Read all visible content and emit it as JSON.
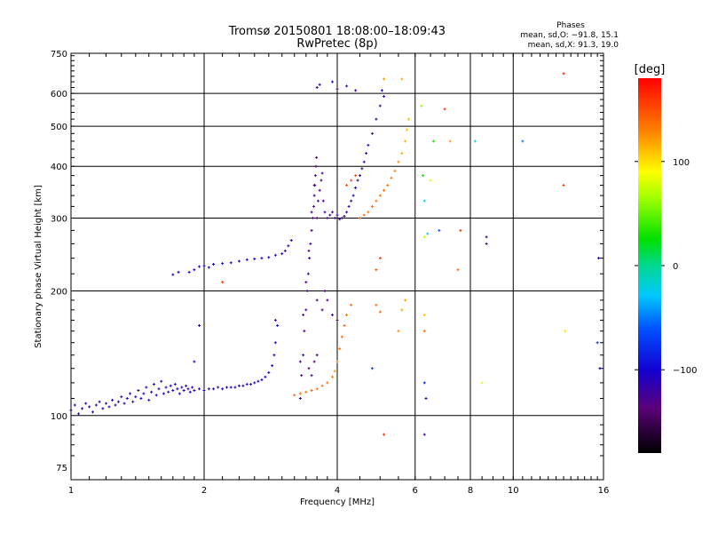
{
  "chart_data": {
    "type": "scatter",
    "title": "Tromsø 20150801 18:08:00–18:09:43",
    "subtitle": "RwPretec (8p)",
    "legend": {
      "heading": "Phases",
      "line_o": "mean, sd,O: −91.8, 15.1",
      "line_x": "mean, sd,X:  91.3, 19.0"
    },
    "xlabel": "Frequency [MHz]",
    "ylabel": "Stationary phase Virtual Height [km]",
    "xscale": "log",
    "yscale": "log",
    "xlim": [
      1,
      16
    ],
    "ylim": [
      70,
      750
    ],
    "grid": true,
    "xticks": [
      {
        "value": 1,
        "label": "1"
      },
      {
        "value": 2,
        "label": "2"
      },
      {
        "value": 4,
        "label": "4"
      },
      {
        "value": 6,
        "label": "6"
      },
      {
        "value": 8,
        "label": "8"
      },
      {
        "value": 10,
        "label": "10"
      },
      {
        "value": 16,
        "label": "16"
      }
    ],
    "yticks": [
      {
        "value": 75,
        "label": "75"
      },
      {
        "value": 100,
        "label": "100"
      },
      {
        "value": 200,
        "label": "200"
      },
      {
        "value": 300,
        "label": "300"
      },
      {
        "value": 400,
        "label": "400"
      },
      {
        "value": 500,
        "label": "500"
      },
      {
        "value": 600,
        "label": "600"
      },
      {
        "value": 750,
        "label": "750"
      }
    ],
    "colorbar": {
      "title": "[deg]",
      "range": [
        -180,
        180
      ],
      "ticks": [
        {
          "value": 100,
          "label": "100"
        },
        {
          "value": 0,
          "label": "0"
        },
        {
          "value": -100,
          "label": "−100"
        }
      ]
    },
    "series": [
      {
        "points": [
          [
            1.0,
            103,
            -110
          ],
          [
            1.02,
            106,
            -112
          ],
          [
            1.04,
            101,
            -108
          ],
          [
            1.06,
            104,
            -115
          ],
          [
            1.08,
            107,
            -110
          ],
          [
            1.1,
            105,
            -112
          ],
          [
            1.12,
            102,
            -108
          ],
          [
            1.14,
            106,
            -110
          ],
          [
            1.16,
            108,
            -114
          ],
          [
            1.18,
            104,
            -110
          ],
          [
            1.2,
            107,
            -112
          ],
          [
            1.22,
            105,
            -108
          ],
          [
            1.24,
            109,
            -110
          ],
          [
            1.26,
            106,
            -113
          ],
          [
            1.28,
            108,
            -110
          ],
          [
            1.3,
            111,
            -112
          ],
          [
            1.32,
            107,
            -110
          ],
          [
            1.34,
            110,
            -109
          ],
          [
            1.36,
            113,
            -112
          ],
          [
            1.38,
            108,
            -110
          ],
          [
            1.4,
            111,
            -112
          ],
          [
            1.42,
            115,
            -110
          ],
          [
            1.44,
            110,
            -108
          ],
          [
            1.46,
            113,
            -111
          ],
          [
            1.48,
            117,
            -110
          ],
          [
            1.5,
            109,
            -112
          ],
          [
            1.52,
            114,
            -110
          ],
          [
            1.54,
            119,
            -108
          ],
          [
            1.56,
            112,
            -110
          ],
          [
            1.58,
            116,
            -112
          ],
          [
            1.6,
            121,
            -110
          ],
          [
            1.62,
            113,
            -111
          ],
          [
            1.64,
            117,
            -110
          ],
          [
            1.66,
            114,
            -112
          ],
          [
            1.68,
            118,
            -109
          ],
          [
            1.7,
            115,
            -110
          ],
          [
            1.72,
            119,
            -112
          ],
          [
            1.74,
            116,
            -110
          ],
          [
            1.76,
            113,
            -108
          ],
          [
            1.78,
            117,
            -111
          ],
          [
            1.8,
            115,
            -110
          ],
          [
            1.82,
            118,
            -112
          ],
          [
            1.84,
            116,
            -110
          ],
          [
            1.86,
            114,
            -109
          ],
          [
            1.88,
            117,
            -111
          ],
          [
            1.9,
            115,
            -110
          ],
          [
            1.95,
            116,
            -112
          ],
          [
            2.0,
            115,
            -110
          ],
          [
            2.05,
            116,
            -111
          ],
          [
            2.1,
            116,
            -110
          ],
          [
            2.15,
            117,
            -112
          ],
          [
            2.2,
            116,
            -110
          ],
          [
            2.25,
            117,
            -111
          ],
          [
            2.3,
            117,
            -110
          ],
          [
            2.35,
            117,
            -112
          ],
          [
            2.4,
            118,
            -110
          ],
          [
            2.45,
            118,
            -111
          ],
          [
            2.5,
            119,
            -110
          ],
          [
            2.55,
            119,
            -112
          ],
          [
            2.6,
            120,
            -110
          ],
          [
            2.65,
            121,
            -108
          ],
          [
            2.7,
            122,
            -105
          ],
          [
            2.75,
            124,
            -102
          ],
          [
            2.8,
            127,
            -100
          ],
          [
            2.85,
            132,
            -98
          ],
          [
            2.88,
            140,
            -97
          ],
          [
            2.9,
            150,
            -96
          ],
          [
            2.93,
            165,
            -95
          ],
          [
            1.85,
            222,
            -100
          ],
          [
            1.9,
            225,
            -101
          ],
          [
            1.95,
            229,
            -100
          ],
          [
            2.0,
            230,
            -102
          ],
          [
            2.05,
            228,
            -100
          ],
          [
            2.1,
            232,
            -101
          ],
          [
            2.2,
            233,
            -100
          ],
          [
            2.3,
            234,
            -102
          ],
          [
            2.4,
            236,
            -100
          ],
          [
            2.5,
            238,
            -101
          ],
          [
            2.6,
            239,
            -100
          ],
          [
            2.7,
            240,
            -102
          ],
          [
            2.8,
            241,
            -100
          ],
          [
            2.9,
            244,
            -101
          ],
          [
            3.0,
            246,
            -103
          ],
          [
            3.05,
            250,
            -105
          ],
          [
            3.1,
            257,
            -108
          ],
          [
            3.15,
            265,
            -112
          ],
          [
            1.7,
            219,
            -100
          ],
          [
            1.75,
            222,
            -101
          ]
        ]
      },
      {
        "points": [
          [
            3.3,
            110,
            -120
          ],
          [
            3.32,
            125,
            -130
          ],
          [
            3.35,
            140,
            -118
          ],
          [
            3.37,
            160,
            -122
          ],
          [
            3.4,
            180,
            -125
          ],
          [
            3.42,
            200,
            -130
          ],
          [
            3.44,
            220,
            -124
          ],
          [
            3.46,
            240,
            -118
          ],
          [
            3.48,
            260,
            -125
          ],
          [
            3.5,
            280,
            -130
          ],
          [
            3.52,
            300,
            -135
          ],
          [
            3.54,
            320,
            -128
          ],
          [
            3.55,
            340,
            -120
          ],
          [
            3.56,
            360,
            -125
          ],
          [
            3.57,
            380,
            -130
          ],
          [
            3.58,
            400,
            -135
          ],
          [
            3.59,
            420,
            -128
          ],
          [
            3.3,
            135,
            -130
          ],
          [
            3.35,
            175,
            -135
          ],
          [
            3.4,
            210,
            -130
          ],
          [
            3.45,
            250,
            -128
          ],
          [
            3.5,
            310,
            -124
          ],
          [
            3.55,
            360,
            -130
          ],
          [
            3.6,
            300,
            -128
          ],
          [
            3.62,
            330,
            -125
          ],
          [
            3.65,
            350,
            -130
          ],
          [
            3.68,
            370,
            -128
          ],
          [
            3.7,
            385,
            -124
          ],
          [
            3.72,
            330,
            -126
          ],
          [
            3.75,
            310,
            -122
          ],
          [
            3.8,
            300,
            -125
          ],
          [
            3.85,
            305,
            -120
          ],
          [
            3.9,
            310,
            -122
          ],
          [
            3.95,
            300,
            -124
          ],
          [
            4.0,
            305,
            -120
          ],
          [
            4.05,
            298,
            -122
          ],
          [
            4.1,
            300,
            -121
          ],
          [
            4.15,
            303,
            -123
          ],
          [
            4.2,
            310,
            -120
          ],
          [
            4.25,
            320,
            -118
          ],
          [
            4.3,
            330,
            -119
          ],
          [
            4.35,
            340,
            -117
          ],
          [
            4.4,
            355,
            -115
          ],
          [
            4.45,
            370,
            -115
          ],
          [
            4.5,
            380,
            -116
          ],
          [
            4.55,
            395,
            -115
          ],
          [
            4.6,
            410,
            -114
          ],
          [
            4.65,
            430,
            -115
          ],
          [
            4.7,
            450,
            -112
          ],
          [
            4.8,
            480,
            -113
          ],
          [
            4.9,
            520,
            -112
          ],
          [
            5.0,
            560,
            -111
          ],
          [
            3.6,
            620,
            -120
          ],
          [
            3.65,
            630,
            -122
          ],
          [
            3.9,
            640,
            -118
          ],
          [
            4.0,
            615,
            -121
          ],
          [
            4.2,
            625,
            -119
          ],
          [
            4.4,
            610,
            -120
          ],
          [
            5.05,
            610,
            -110
          ],
          [
            5.1,
            590,
            -112
          ],
          [
            3.7,
            180,
            -130
          ],
          [
            3.75,
            200,
            -128
          ],
          [
            3.8,
            190,
            -125
          ],
          [
            3.9,
            175,
            -122
          ],
          [
            4.0,
            170,
            -125
          ],
          [
            3.6,
            190,
            -130
          ],
          [
            3.45,
            130,
            -135
          ],
          [
            3.5,
            125,
            -132
          ],
          [
            3.55,
            135,
            -130
          ],
          [
            3.6,
            140,
            -128
          ]
        ]
      },
      {
        "points": [
          [
            3.2,
            112,
            140
          ],
          [
            3.3,
            113,
            138
          ],
          [
            3.4,
            114,
            135
          ],
          [
            3.5,
            115,
            140
          ],
          [
            3.6,
            116,
            138
          ],
          [
            3.7,
            118,
            135
          ],
          [
            3.8,
            120,
            140
          ],
          [
            3.9,
            124,
            132
          ],
          [
            3.95,
            128,
            125
          ],
          [
            4.0,
            135,
            130
          ],
          [
            4.05,
            145,
            138
          ],
          [
            4.1,
            155,
            140
          ],
          [
            4.15,
            165,
            142
          ],
          [
            4.2,
            175,
            136
          ],
          [
            4.3,
            185,
            140
          ],
          [
            4.5,
            300,
            140
          ],
          [
            4.6,
            305,
            138
          ],
          [
            4.7,
            310,
            135
          ],
          [
            4.8,
            320,
            140
          ],
          [
            4.9,
            330,
            138
          ],
          [
            5.0,
            340,
            135
          ],
          [
            5.1,
            350,
            140
          ],
          [
            5.2,
            360,
            138
          ],
          [
            5.3,
            375,
            135
          ],
          [
            5.4,
            390,
            130
          ],
          [
            5.5,
            410,
            125
          ],
          [
            5.6,
            430,
            120
          ],
          [
            5.7,
            460,
            115
          ],
          [
            5.75,
            490,
            110
          ],
          [
            5.8,
            520,
            112
          ],
          [
            5.6,
            650,
            118
          ],
          [
            5.1,
            650,
            122
          ],
          [
            4.2,
            360,
            150
          ],
          [
            4.3,
            370,
            152
          ],
          [
            4.4,
            380,
            150
          ],
          [
            5.5,
            160,
            125
          ],
          [
            5.6,
            180,
            120
          ],
          [
            5.7,
            190,
            118
          ],
          [
            4.9,
            185,
            140
          ],
          [
            5.0,
            178,
            142
          ]
        ]
      },
      {
        "points": [
          [
            6.2,
            560,
            60
          ],
          [
            6.25,
            380,
            30
          ],
          [
            6.3,
            330,
            -20
          ],
          [
            6.3,
            270,
            70
          ],
          [
            6.3,
            175,
            110
          ],
          [
            6.3,
            160,
            140
          ],
          [
            6.3,
            120,
            -90
          ],
          [
            6.35,
            110,
            -110
          ],
          [
            6.4,
            275,
            -30
          ],
          [
            6.5,
            370,
            80
          ],
          [
            6.6,
            460,
            30
          ],
          [
            6.8,
            280,
            -60
          ],
          [
            7.0,
            550,
            160
          ],
          [
            7.2,
            460,
            120
          ],
          [
            7.5,
            225,
            140
          ],
          [
            7.6,
            280,
            160
          ],
          [
            8.2,
            460,
            -20
          ],
          [
            8.5,
            120,
            80
          ],
          [
            8.7,
            270,
            -120
          ],
          [
            8.7,
            260,
            -140
          ],
          [
            10.5,
            460,
            -50
          ],
          [
            13.0,
            670,
            170
          ],
          [
            13.0,
            360,
            160
          ],
          [
            13.1,
            160,
            100
          ],
          [
            15.5,
            150,
            -80
          ],
          [
            15.7,
            130,
            -100
          ],
          [
            15.6,
            240,
            -110
          ],
          [
            5.1,
            90,
            160
          ],
          [
            6.3,
            90,
            -120
          ],
          [
            4.8,
            130,
            -70
          ],
          [
            4.9,
            225,
            150
          ],
          [
            5.0,
            240,
            160
          ],
          [
            2.2,
            210,
            160
          ],
          [
            1.95,
            165,
            -110
          ],
          [
            1.9,
            135,
            -100
          ],
          [
            2.9,
            170,
            -110
          ]
        ]
      }
    ]
  }
}
